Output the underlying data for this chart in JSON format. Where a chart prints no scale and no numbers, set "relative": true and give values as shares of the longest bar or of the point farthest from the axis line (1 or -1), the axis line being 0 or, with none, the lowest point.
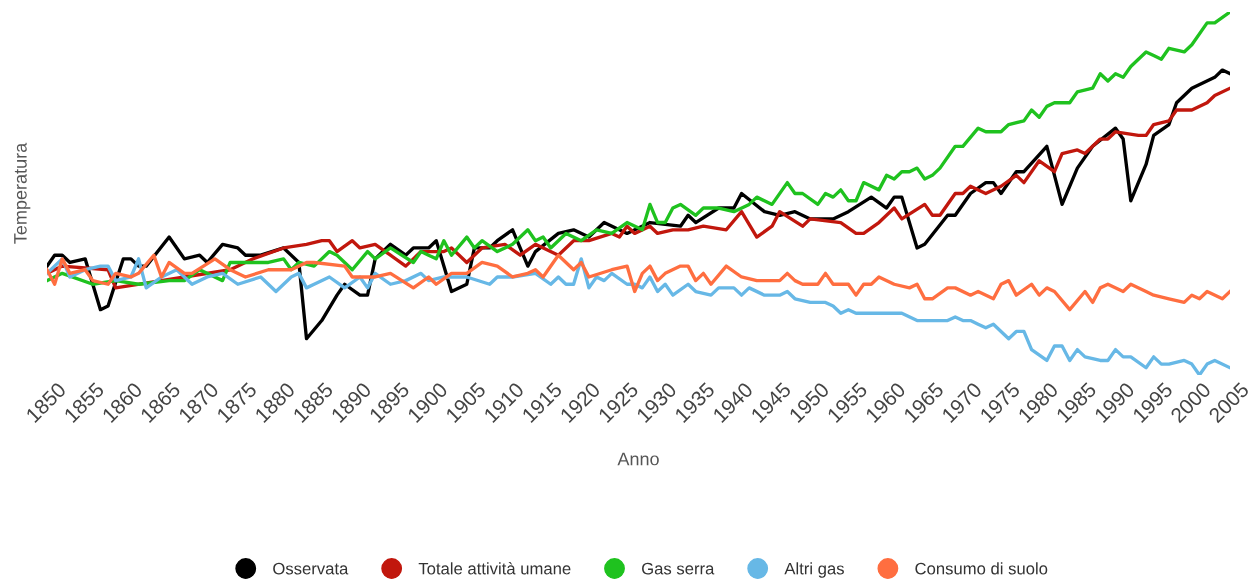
{
  "chart_data": {
    "type": "line",
    "relative": true,
    "xlabel": "Anno",
    "ylabel": "Temperatura",
    "xlim": [
      1850,
      2005
    ],
    "xticks": [
      1850,
      1855,
      1860,
      1865,
      1870,
      1875,
      1880,
      1885,
      1890,
      1895,
      1900,
      1905,
      1910,
      1915,
      1920,
      1925,
      1930,
      1935,
      1940,
      1945,
      1950,
      1955,
      1960,
      1965,
      1970,
      1975,
      1980,
      1985,
      1990,
      1995,
      2000,
      2005
    ],
    "grid": false,
    "legend": "bottom",
    "marker": "none",
    "line_style": "solid",
    "series": [
      {
        "name": "Osservata",
        "color": "#000000",
        "x": [
          1850,
          1851,
          1852,
          1853,
          1855,
          1857,
          1858,
          1860,
          1861,
          1862,
          1863,
          1866,
          1868,
          1870,
          1871,
          1873,
          1875,
          1876,
          1878,
          1881,
          1883,
          1884,
          1886,
          1888,
          1889,
          1891,
          1892,
          1893,
          1895,
          1897,
          1898,
          1899,
          1900,
          1901,
          1903,
          1905,
          1906,
          1908,
          1909,
          1911,
          1913,
          1914,
          1917,
          1919,
          1921,
          1923,
          1926,
          1929,
          1933,
          1934,
          1935,
          1938,
          1940,
          1941,
          1944,
          1946,
          1948,
          1950,
          1953,
          1955,
          1958,
          1960,
          1961,
          1962,
          1964,
          1965,
          1968,
          1969,
          1971,
          1973,
          1974,
          1975,
          1977,
          1978,
          1981,
          1983,
          1985,
          1987,
          1990,
          1991,
          1992,
          1994,
          1995,
          1997,
          1998,
          2000,
          2003,
          2004,
          2005
        ],
        "values": [
          0.3,
          0.33,
          0.33,
          0.31,
          0.32,
          0.18,
          0.19,
          0.32,
          0.32,
          0.3,
          0.3,
          0.38,
          0.32,
          0.33,
          0.31,
          0.36,
          0.35,
          0.33,
          0.33,
          0.35,
          0.31,
          0.1,
          0.15,
          0.22,
          0.25,
          0.22,
          0.22,
          0.32,
          0.36,
          0.33,
          0.35,
          0.35,
          0.35,
          0.37,
          0.23,
          0.25,
          0.35,
          0.35,
          0.37,
          0.4,
          0.3,
          0.34,
          0.39,
          0.4,
          0.38,
          0.42,
          0.39,
          0.42,
          0.41,
          0.44,
          0.42,
          0.46,
          0.46,
          0.5,
          0.45,
          0.44,
          0.45,
          0.43,
          0.43,
          0.45,
          0.49,
          0.46,
          0.49,
          0.49,
          0.35,
          0.36,
          0.44,
          0.44,
          0.5,
          0.53,
          0.53,
          0.5,
          0.56,
          0.56,
          0.63,
          0.47,
          0.57,
          0.63,
          0.68,
          0.65,
          0.48,
          0.58,
          0.66,
          0.69,
          0.75,
          0.79,
          0.82,
          0.84,
          0.83
        ]
      },
      {
        "name": "Totale attività umane",
        "color": "#c1170d",
        "x": [
          1850,
          1852,
          1858,
          1859,
          1874,
          1877,
          1881,
          1884,
          1886,
          1887,
          1888,
          1890,
          1891,
          1893,
          1895,
          1897,
          1898,
          1899,
          1902,
          1903,
          1905,
          1907,
          1910,
          1912,
          1914,
          1917,
          1919,
          1921,
          1924,
          1925,
          1926,
          1927,
          1929,
          1930,
          1932,
          1934,
          1936,
          1939,
          1941,
          1943,
          1945,
          1946,
          1949,
          1950,
          1954,
          1956,
          1957,
          1959,
          1961,
          1962,
          1965,
          1966,
          1967,
          1969,
          1970,
          1971,
          1973,
          1975,
          1977,
          1978,
          1980,
          1982,
          1983,
          1985,
          1986,
          1988,
          1989,
          1990,
          1993,
          1994,
          1995,
          1997,
          1998,
          2000,
          2002,
          2003,
          2005
        ],
        "values": [
          0.28,
          0.3,
          0.29,
          0.24,
          0.29,
          0.32,
          0.35,
          0.36,
          0.37,
          0.37,
          0.34,
          0.37,
          0.35,
          0.36,
          0.33,
          0.3,
          0.32,
          0.34,
          0.34,
          0.35,
          0.31,
          0.35,
          0.36,
          0.33,
          0.36,
          0.33,
          0.37,
          0.37,
          0.39,
          0.38,
          0.41,
          0.39,
          0.41,
          0.39,
          0.4,
          0.4,
          0.41,
          0.4,
          0.45,
          0.38,
          0.41,
          0.45,
          0.41,
          0.43,
          0.42,
          0.39,
          0.39,
          0.42,
          0.46,
          0.43,
          0.47,
          0.44,
          0.44,
          0.5,
          0.5,
          0.52,
          0.5,
          0.52,
          0.55,
          0.53,
          0.59,
          0.56,
          0.61,
          0.62,
          0.61,
          0.65,
          0.65,
          0.67,
          0.66,
          0.66,
          0.69,
          0.7,
          0.73,
          0.73,
          0.75,
          0.77,
          0.79
        ]
      },
      {
        "name": "Gas serra",
        "color": "#1fc21f",
        "x": [
          1850,
          1852,
          1856,
          1859,
          1862,
          1866,
          1868,
          1870,
          1873,
          1874,
          1876,
          1879,
          1881,
          1882,
          1883,
          1885,
          1887,
          1888,
          1890,
          1892,
          1893,
          1895,
          1898,
          1899,
          1900,
          1901,
          1902,
          1903,
          1905,
          1906,
          1907,
          1909,
          1911,
          1913,
          1914,
          1915,
          1916,
          1918,
          1920,
          1922,
          1924,
          1926,
          1928,
          1929,
          1930,
          1931,
          1932,
          1933,
          1935,
          1936,
          1938,
          1940,
          1942,
          1943,
          1945,
          1947,
          1948,
          1949,
          1951,
          1952,
          1953,
          1954,
          1955,
          1956,
          1957,
          1959,
          1960,
          1961,
          1962,
          1963,
          1964,
          1965,
          1966,
          1967,
          1969,
          1970,
          1972,
          1973,
          1975,
          1976,
          1978,
          1979,
          1980,
          1981,
          1982,
          1984,
          1985,
          1987,
          1988,
          1989,
          1990,
          1991,
          1992,
          1994,
          1995,
          1996,
          1997,
          1999,
          2000,
          2002,
          2003,
          2005
        ],
        "values": [
          0.26,
          0.28,
          0.25,
          0.26,
          0.25,
          0.26,
          0.26,
          0.29,
          0.26,
          0.31,
          0.31,
          0.31,
          0.32,
          0.29,
          0.31,
          0.3,
          0.34,
          0.33,
          0.29,
          0.34,
          0.32,
          0.35,
          0.31,
          0.34,
          0.33,
          0.32,
          0.37,
          0.33,
          0.38,
          0.35,
          0.37,
          0.34,
          0.36,
          0.4,
          0.37,
          0.38,
          0.35,
          0.39,
          0.37,
          0.4,
          0.39,
          0.42,
          0.4,
          0.47,
          0.42,
          0.42,
          0.46,
          0.47,
          0.44,
          0.46,
          0.46,
          0.45,
          0.47,
          0.49,
          0.47,
          0.53,
          0.5,
          0.5,
          0.47,
          0.5,
          0.49,
          0.51,
          0.48,
          0.48,
          0.53,
          0.51,
          0.55,
          0.54,
          0.56,
          0.56,
          0.57,
          0.54,
          0.55,
          0.57,
          0.63,
          0.63,
          0.68,
          0.67,
          0.67,
          0.69,
          0.7,
          0.73,
          0.71,
          0.74,
          0.75,
          0.75,
          0.78,
          0.79,
          0.83,
          0.81,
          0.83,
          0.82,
          0.85,
          0.89,
          0.88,
          0.87,
          0.9,
          0.89,
          0.91,
          0.97,
          0.97,
          1.0
        ]
      },
      {
        "name": "Altri gas",
        "color": "#67b8e6",
        "x": [
          1850,
          1852,
          1853,
          1855,
          1857,
          1858,
          1859,
          1861,
          1862,
          1863,
          1865,
          1867,
          1869,
          1871,
          1873,
          1875,
          1878,
          1880,
          1882,
          1883,
          1884,
          1885,
          1887,
          1889,
          1891,
          1892,
          1893,
          1895,
          1897,
          1899,
          1900,
          1902,
          1905,
          1908,
          1909,
          1911,
          1914,
          1916,
          1917,
          1918,
          1919,
          1920,
          1921,
          1922,
          1923,
          1924,
          1926,
          1927,
          1928,
          1929,
          1930,
          1931,
          1932,
          1934,
          1935,
          1937,
          1938,
          1940,
          1941,
          1942,
          1944,
          1946,
          1947,
          1948,
          1950,
          1951,
          1952,
          1953,
          1954,
          1955,
          1956,
          1959,
          1960,
          1962,
          1964,
          1966,
          1967,
          1968,
          1969,
          1970,
          1971,
          1972,
          1973,
          1974,
          1976,
          1977,
          1978,
          1979,
          1981,
          1982,
          1983,
          1984,
          1985,
          1986,
          1988,
          1989,
          1990,
          1991,
          1992,
          1994,
          1995,
          1996,
          1997,
          1999,
          2000,
          2001,
          2002,
          2003,
          2005
        ],
        "values": [
          0.28,
          0.32,
          0.27,
          0.29,
          0.3,
          0.3,
          0.26,
          0.27,
          0.32,
          0.24,
          0.27,
          0.29,
          0.25,
          0.27,
          0.28,
          0.25,
          0.27,
          0.23,
          0.27,
          0.28,
          0.24,
          0.25,
          0.27,
          0.24,
          0.27,
          0.24,
          0.28,
          0.25,
          0.26,
          0.28,
          0.26,
          0.27,
          0.27,
          0.25,
          0.27,
          0.27,
          0.28,
          0.25,
          0.27,
          0.25,
          0.25,
          0.32,
          0.24,
          0.27,
          0.26,
          0.28,
          0.25,
          0.25,
          0.24,
          0.27,
          0.23,
          0.25,
          0.22,
          0.25,
          0.23,
          0.22,
          0.24,
          0.24,
          0.22,
          0.24,
          0.22,
          0.22,
          0.23,
          0.21,
          0.2,
          0.2,
          0.2,
          0.19,
          0.17,
          0.18,
          0.17,
          0.17,
          0.17,
          0.17,
          0.15,
          0.15,
          0.15,
          0.15,
          0.16,
          0.15,
          0.15,
          0.14,
          0.13,
          0.14,
          0.1,
          0.12,
          0.12,
          0.07,
          0.04,
          0.08,
          0.08,
          0.04,
          0.07,
          0.05,
          0.04,
          0.04,
          0.07,
          0.05,
          0.05,
          0.02,
          0.05,
          0.03,
          0.03,
          0.04,
          0.03,
          0.0,
          0.03,
          0.04,
          0.02
        ]
      },
      {
        "name": "Consumo di suolo",
        "color": "#ff6e40",
        "x": [
          1850,
          1851,
          1852,
          1853,
          1855,
          1856,
          1858,
          1859,
          1861,
          1862,
          1864,
          1865,
          1866,
          1868,
          1869,
          1872,
          1874,
          1876,
          1879,
          1882,
          1884,
          1885,
          1889,
          1890,
          1893,
          1895,
          1898,
          1900,
          1901,
          1903,
          1905,
          1907,
          1909,
          1911,
          1913,
          1914,
          1915,
          1917,
          1919,
          1920,
          1921,
          1924,
          1926,
          1927,
          1928,
          1929,
          1930,
          1931,
          1933,
          1934,
          1935,
          1936,
          1937,
          1939,
          1941,
          1943,
          1945,
          1946,
          1947,
          1948,
          1949,
          1951,
          1952,
          1953,
          1955,
          1956,
          1957,
          1958,
          1959,
          1961,
          1963,
          1964,
          1965,
          1966,
          1968,
          1969,
          1971,
          1972,
          1974,
          1975,
          1976,
          1977,
          1979,
          1980,
          1981,
          1982,
          1984,
          1986,
          1987,
          1988,
          1989,
          1991,
          1992,
          1994,
          1995,
          1997,
          1999,
          2000,
          2001,
          2002,
          2004,
          2005
        ],
        "values": [
          0.29,
          0.25,
          0.32,
          0.28,
          0.29,
          0.26,
          0.25,
          0.28,
          0.27,
          0.28,
          0.33,
          0.27,
          0.31,
          0.28,
          0.28,
          0.32,
          0.29,
          0.27,
          0.29,
          0.29,
          0.31,
          0.31,
          0.3,
          0.27,
          0.27,
          0.28,
          0.24,
          0.27,
          0.25,
          0.28,
          0.28,
          0.31,
          0.3,
          0.27,
          0.28,
          0.29,
          0.27,
          0.33,
          0.29,
          0.31,
          0.27,
          0.29,
          0.3,
          0.23,
          0.28,
          0.3,
          0.26,
          0.28,
          0.3,
          0.3,
          0.26,
          0.28,
          0.25,
          0.3,
          0.27,
          0.26,
          0.26,
          0.26,
          0.28,
          0.26,
          0.25,
          0.25,
          0.28,
          0.25,
          0.25,
          0.22,
          0.25,
          0.25,
          0.27,
          0.25,
          0.24,
          0.25,
          0.21,
          0.21,
          0.24,
          0.24,
          0.22,
          0.23,
          0.21,
          0.25,
          0.26,
          0.22,
          0.25,
          0.22,
          0.24,
          0.23,
          0.18,
          0.23,
          0.2,
          0.24,
          0.25,
          0.23,
          0.25,
          0.23,
          0.22,
          0.21,
          0.2,
          0.22,
          0.21,
          0.23,
          0.21,
          0.23
        ]
      }
    ]
  }
}
